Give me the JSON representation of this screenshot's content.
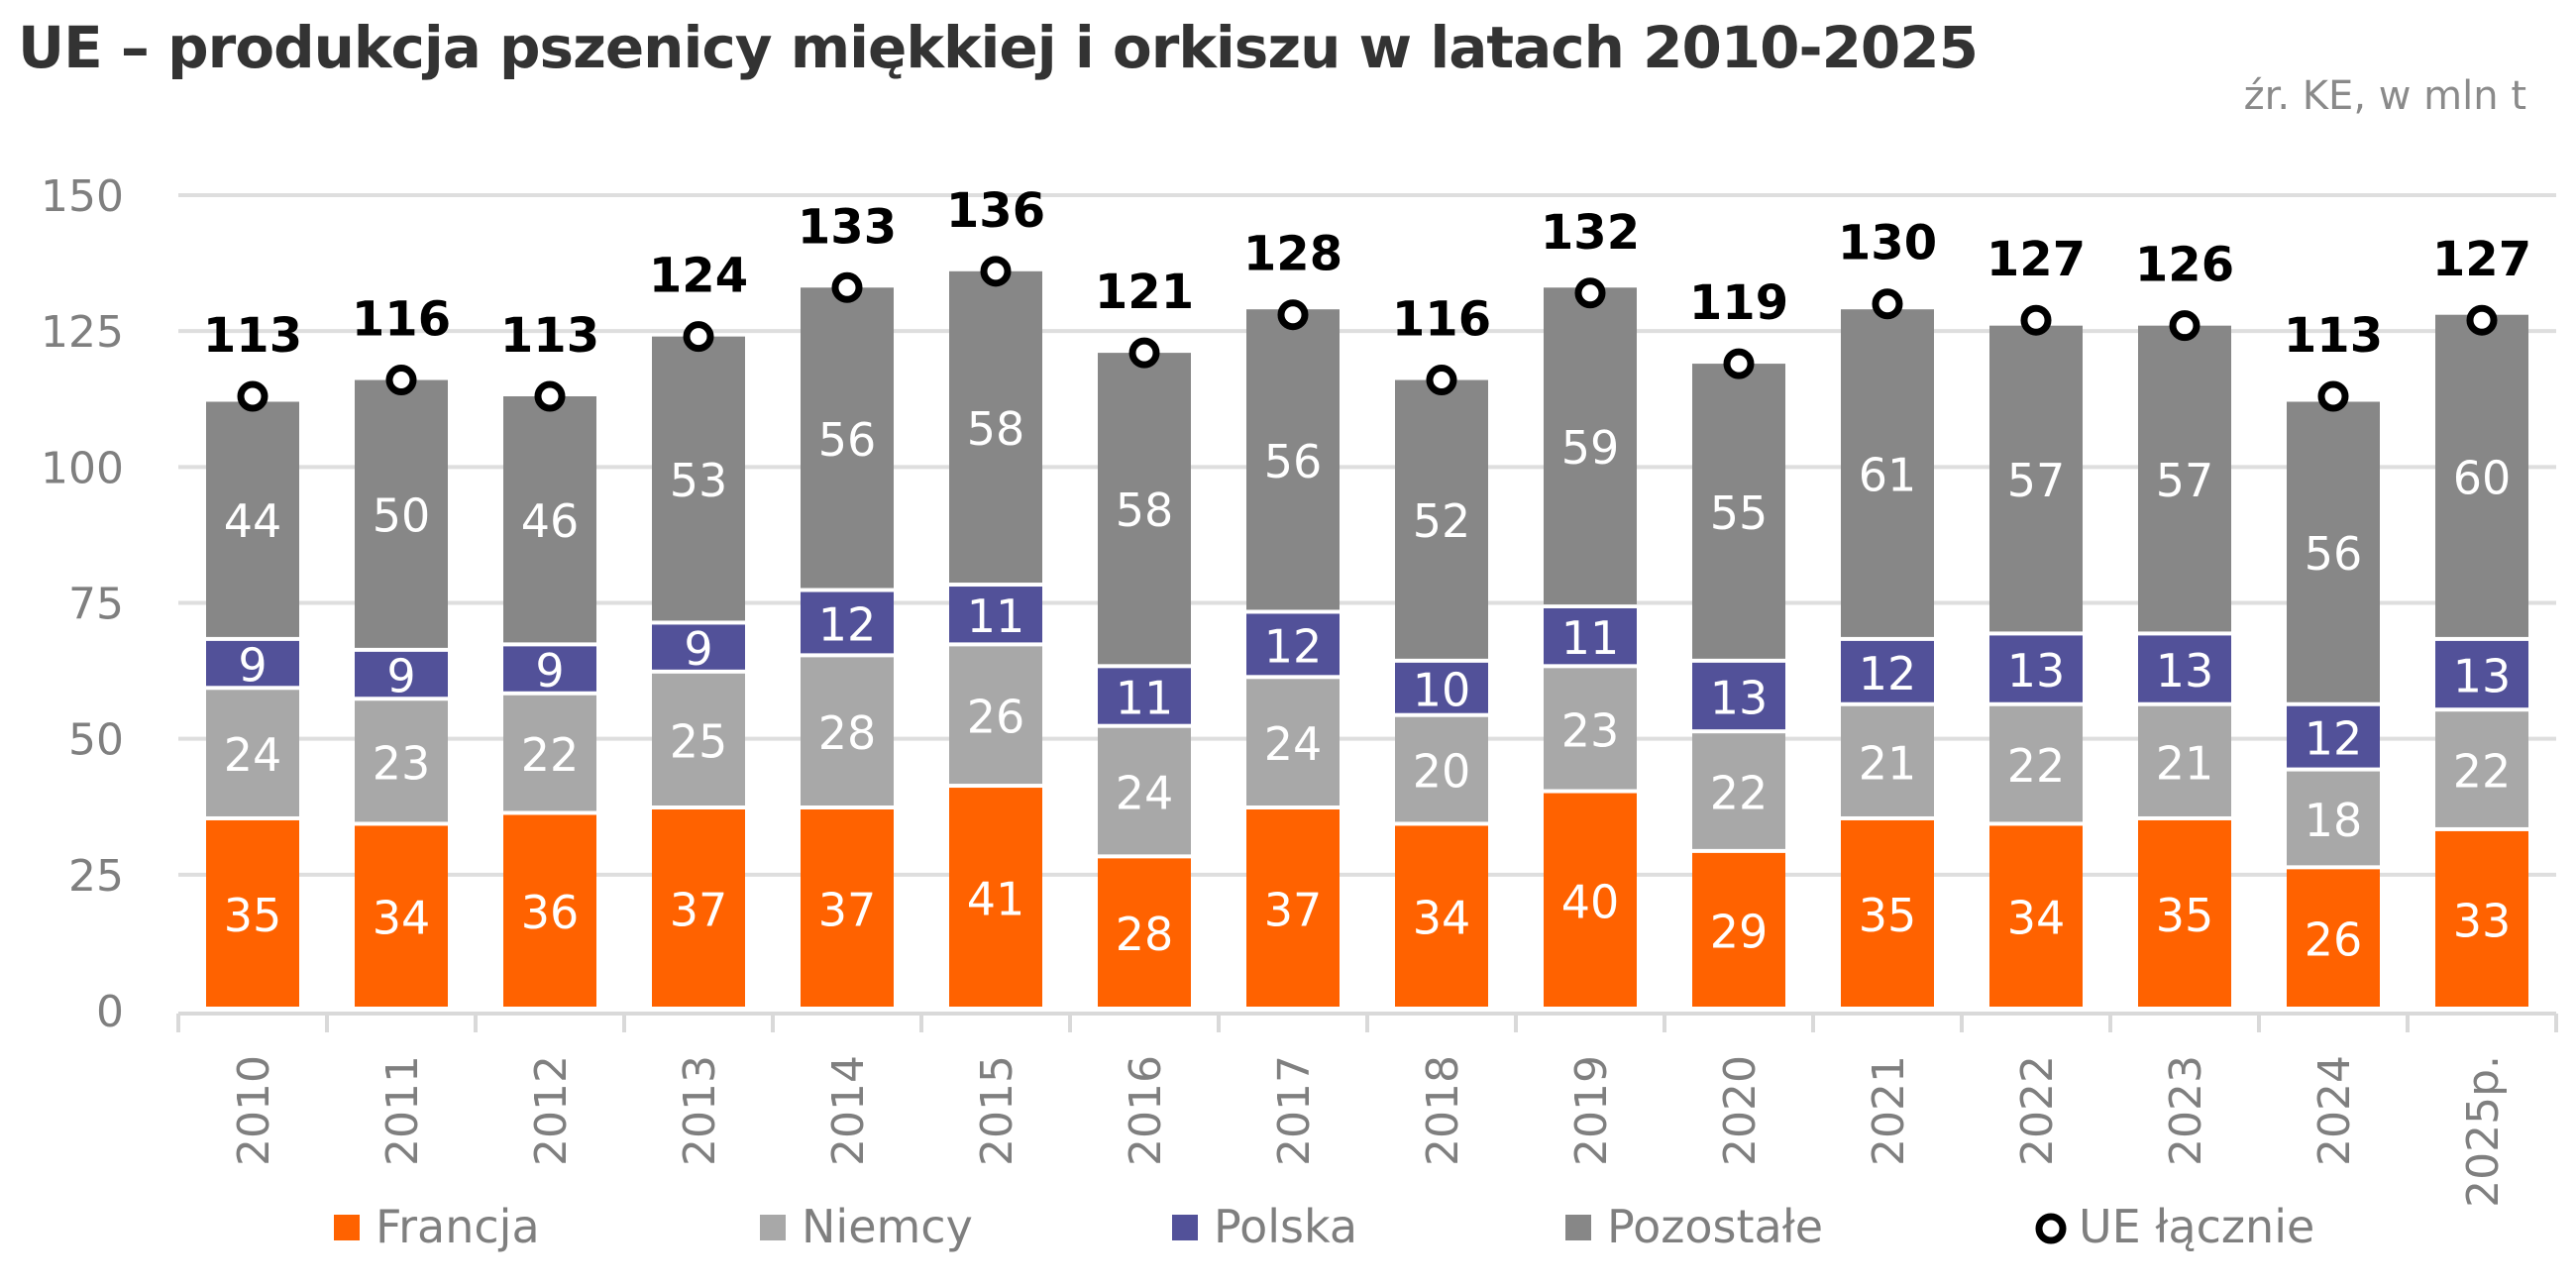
{
  "chart_data": {
    "type": "bar",
    "stacked": true,
    "title": "UE – produkcja pszenicy miękkiej i orkiszu w latach 2010-2025",
    "subtitle": "źr. KE, w mln t",
    "xlabel": "",
    "ylabel": "",
    "ylim": [
      0,
      150
    ],
    "yticks": [
      0,
      25,
      50,
      75,
      100,
      125,
      150
    ],
    "grid": true,
    "legend_position": "bottom",
    "categories": [
      "2010",
      "2011",
      "2012",
      "2013",
      "2014",
      "2015",
      "2016",
      "2017",
      "2018",
      "2019",
      "2020",
      "2021",
      "2022",
      "2023",
      "2024",
      "2025p."
    ],
    "series": [
      {
        "name": "Francja",
        "color": "#ff6200",
        "values": [
          35,
          34,
          36,
          37,
          37,
          41,
          28,
          37,
          34,
          40,
          29,
          35,
          34,
          35,
          26,
          33
        ]
      },
      {
        "name": "Niemcy",
        "color": "#a8a8a8",
        "values": [
          24,
          23,
          22,
          25,
          28,
          26,
          24,
          24,
          20,
          23,
          22,
          21,
          22,
          21,
          18,
          22
        ]
      },
      {
        "name": "Polska",
        "color": "#525199",
        "values": [
          9,
          9,
          9,
          9,
          12,
          11,
          11,
          12,
          10,
          11,
          13,
          12,
          13,
          13,
          12,
          13
        ]
      },
      {
        "name": "Pozostałe",
        "color": "#878787",
        "values": [
          44,
          50,
          46,
          53,
          56,
          58,
          58,
          56,
          52,
          59,
          55,
          61,
          57,
          57,
          56,
          60
        ]
      }
    ],
    "line_series": {
      "name": "UE łącznie",
      "type": "marker",
      "marker": "circle-open",
      "color": "#000000",
      "values": [
        113,
        116,
        113,
        124,
        133,
        136,
        121,
        128,
        116,
        132,
        119,
        130,
        127,
        126,
        113,
        127
      ]
    }
  }
}
